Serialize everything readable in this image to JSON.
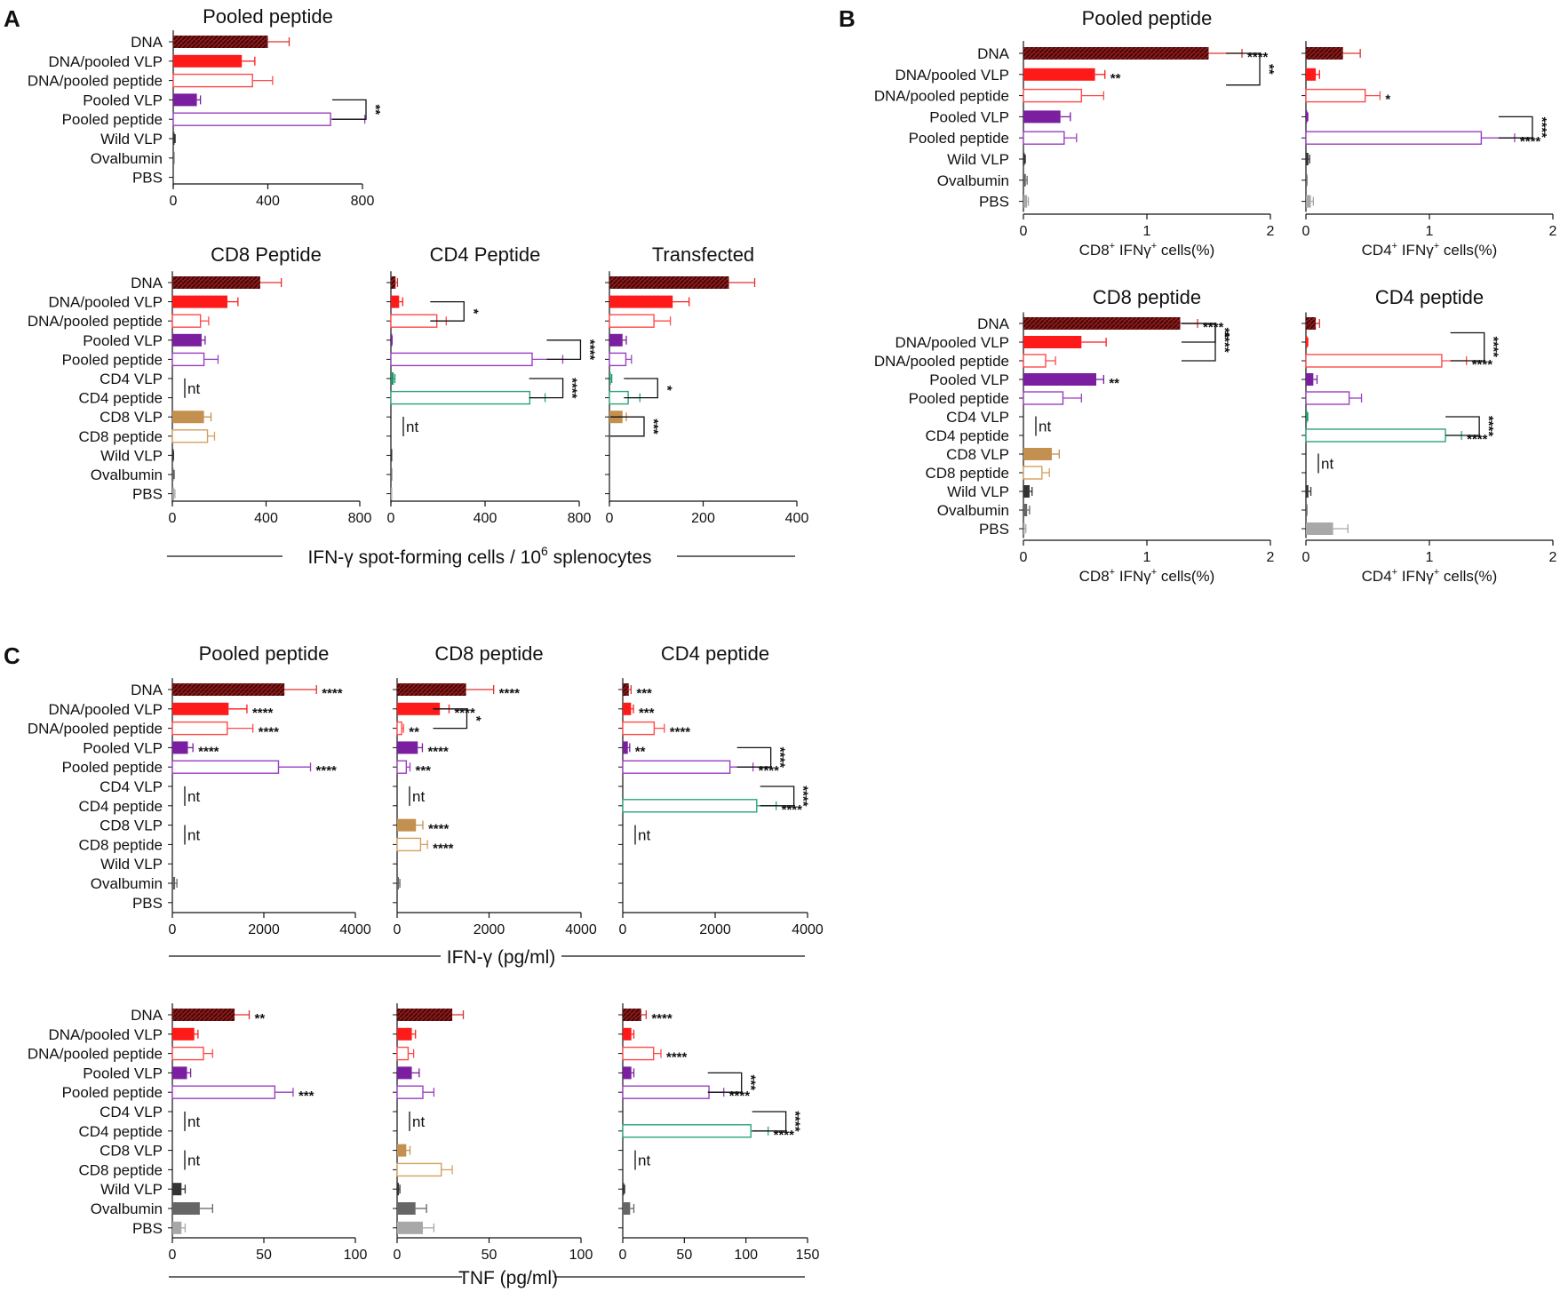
{
  "figure": {
    "panel_labels": [
      "A",
      "B",
      "C"
    ],
    "panelA": {
      "group_label": "IFN-γ spot-forming cells / 10",
      "group_label_sup": "6",
      "group_label_tail": " splenocytes"
    },
    "panelC": {
      "ifng_label": "IFN-γ (pg/ml)",
      "tnf_label": "TNF (pg/ml)"
    }
  },
  "chart_data": [
    {
      "id": "A1",
      "type": "bar",
      "title": "Pooled peptide",
      "categories": [
        "DNA",
        "DNA/pooled VLP",
        "DNA/pooled peptide",
        "Pooled VLP",
        "Pooled peptide",
        "Wild VLP",
        "Ovalbumin",
        "PBS"
      ],
      "values": [
        400,
        290,
        335,
        100,
        665,
        5,
        2,
        0
      ],
      "errors": [
        90,
        55,
        85,
        15,
        145,
        3,
        1,
        0
      ],
      "xlim": [
        0,
        800
      ],
      "ticks": [
        0,
        400,
        800
      ],
      "xlabel": "",
      "annotations": [
        {
          "type": "bracket",
          "from": "Pooled VLP",
          "to": "Pooled peptide",
          "label": "**"
        }
      ]
    },
    {
      "id": "A2",
      "type": "bar",
      "title": "CD8 Peptide",
      "categories": [
        "DNA",
        "DNA/pooled VLP",
        "DNA/pooled peptide",
        "Pooled VLP",
        "Pooled peptide",
        "CD4 VLP",
        "CD4 peptide",
        "CD8 VLP",
        "CD8 peptide",
        "Wild VLP",
        "Ovalbumin",
        "PBS"
      ],
      "values": [
        375,
        235,
        120,
        125,
        135,
        null,
        null,
        135,
        150,
        3,
        5,
        8
      ],
      "errors": [
        90,
        45,
        35,
        15,
        60,
        0,
        0,
        30,
        30,
        2,
        3,
        3
      ],
      "xlim": [
        0,
        800
      ],
      "ticks": [
        0,
        400,
        800
      ],
      "xlabel": "",
      "annotations": [
        {
          "type": "nt",
          "at": "CD4 VLP",
          "label": "nt"
        }
      ]
    },
    {
      "id": "A3",
      "type": "bar",
      "title": "CD4 Peptide",
      "categories": [
        "DNA",
        "DNA/pooled VLP",
        "DNA/pooled peptide",
        "Pooled VLP",
        "Pooled peptide",
        "CD4 VLP",
        "CD4 peptide",
        "CD8 VLP",
        "CD8 peptide",
        "Wild VLP",
        "Ovalbumin",
        "PBS"
      ],
      "values": [
        20,
        35,
        195,
        3,
        600,
        12,
        590,
        null,
        null,
        2,
        1,
        1
      ],
      "errors": [
        8,
        15,
        40,
        2,
        130,
        5,
        65,
        0,
        0,
        1,
        1,
        1
      ],
      "xlim": [
        0,
        800
      ],
      "ticks": [
        0,
        400,
        800
      ],
      "xlabel": "",
      "annotations": [
        {
          "type": "bracket",
          "from": "DNA/pooled VLP",
          "to": "DNA/pooled peptide",
          "label": "*"
        },
        {
          "type": "bracket",
          "from": "Pooled VLP",
          "to": "Pooled peptide",
          "label": "****"
        },
        {
          "type": "bracket",
          "from": "CD4 VLP",
          "to": "CD4 peptide",
          "label": "****"
        },
        {
          "type": "nt",
          "at": "CD8 VLP",
          "label": "nt"
        }
      ]
    },
    {
      "id": "A4",
      "type": "bar",
      "title": "Transfected",
      "categories": [
        "DNA",
        "DNA/pooled VLP",
        "DNA/pooled peptide",
        "Pooled VLP",
        "Pooled peptide",
        "CD4 VLP",
        "CD4 peptide",
        "CD8 VLP",
        "CD8 peptide",
        "Wild VLP",
        "Ovalbumin",
        "PBS"
      ],
      "values": [
        255,
        135,
        95,
        28,
        35,
        3,
        40,
        28,
        0,
        0,
        0,
        0
      ],
      "errors": [
        55,
        35,
        35,
        8,
        12,
        2,
        25,
        8,
        0,
        0,
        0,
        0
      ],
      "xlim": [
        0,
        400
      ],
      "ticks": [
        0,
        200,
        400
      ],
      "xlabel": "",
      "annotations": [
        {
          "type": "bracket",
          "from": "CD4 VLP",
          "to": "CD4 peptide",
          "label": "*"
        },
        {
          "type": "bracket",
          "from": "CD8 VLP",
          "to": "CD8 peptide",
          "label": "***"
        }
      ]
    },
    {
      "id": "B1",
      "type": "bar",
      "title": "Pooled peptide",
      "categories": [
        "DNA",
        "DNA/pooled VLP",
        "DNA/pooled peptide",
        "Pooled VLP",
        "Pooled peptide",
        "Wild VLP",
        "Ovalbumin",
        "PBS"
      ],
      "values": [
        1.5,
        0.58,
        0.47,
        0.3,
        0.33,
        0.01,
        0.02,
        0.03
      ],
      "errors": [
        0.27,
        0.08,
        0.18,
        0.08,
        0.1,
        0.005,
        0.01,
        0.01
      ],
      "xlim": [
        0,
        2
      ],
      "ticks": [
        0,
        1,
        2
      ],
      "xlabel": "CD8",
      "xlabel_sup1": "+",
      "xlabel_mid": " IFNγ",
      "xlabel_sup2": "+",
      "xlabel_tail": " cells(%)",
      "annotations": [
        {
          "type": "star",
          "at": "DNA",
          "label": "****"
        },
        {
          "type": "star",
          "at": "DNA/pooled VLP",
          "label": "**"
        },
        {
          "type": "bracket",
          "from": "DNA",
          "to": "DNA/pooled VLP+DNA/pooled peptide",
          "label": "**"
        }
      ]
    },
    {
      "id": "B2",
      "type": "bar",
      "title": "",
      "categories": [
        "DNA",
        "DNA/pooled VLP",
        "DNA/pooled peptide",
        "Pooled VLP",
        "Pooled peptide",
        "Wild VLP",
        "Ovalbumin",
        "PBS"
      ],
      "values": [
        0.3,
        0.08,
        0.48,
        0.01,
        1.42,
        0.02,
        0.005,
        0.04
      ],
      "errors": [
        0.14,
        0.03,
        0.12,
        0.005,
        0.27,
        0.01,
        0.003,
        0.02
      ],
      "xlim": [
        0,
        2
      ],
      "ticks": [
        0,
        1,
        2
      ],
      "xlabel": "CD4",
      "xlabel_sup1": "+",
      "xlabel_mid": " IFNγ",
      "xlabel_sup2": "+",
      "xlabel_tail": " cells(%)",
      "annotations": [
        {
          "type": "star",
          "at": "DNA/pooled peptide",
          "label": "*"
        },
        {
          "type": "star",
          "at": "Pooled peptide",
          "label": "****"
        },
        {
          "type": "bracket",
          "from": "Pooled VLP",
          "to": "Pooled peptide",
          "label": "****"
        }
      ]
    },
    {
      "id": "B3",
      "type": "bar",
      "title": "CD8 peptide",
      "categories": [
        "DNA",
        "DNA/pooled VLP",
        "DNA/pooled peptide",
        "Pooled VLP",
        "Pooled peptide",
        "CD4 VLP",
        "CD4 peptide",
        "CD8 VLP",
        "CD8 peptide",
        "Wild VLP",
        "Ovalbumin",
        "PBS"
      ],
      "values": [
        1.27,
        0.47,
        0.18,
        0.59,
        0.32,
        null,
        null,
        0.23,
        0.15,
        0.05,
        0.03,
        0.01
      ],
      "errors": [
        0.14,
        0.2,
        0.08,
        0.06,
        0.15,
        0,
        0,
        0.06,
        0.06,
        0.02,
        0.02,
        0.01
      ],
      "xlim": [
        0,
        2
      ],
      "ticks": [
        0,
        1,
        2
      ],
      "xlabel": "CD8",
      "xlabel_sup1": "+",
      "xlabel_mid": " IFNγ",
      "xlabel_sup2": "+",
      "xlabel_tail": " cells(%)",
      "annotations": [
        {
          "type": "star",
          "at": "DNA",
          "label": "****"
        },
        {
          "type": "star",
          "at": "Pooled VLP",
          "label": "**"
        },
        {
          "type": "bracket",
          "from": "DNA",
          "to": "DNA/pooled VLP",
          "label": "**"
        },
        {
          "type": "bracket",
          "from": "DNA",
          "to": "DNA/pooled peptide",
          "label": "****"
        },
        {
          "type": "nt",
          "at": "CD4 VLP",
          "label": "nt"
        }
      ]
    },
    {
      "id": "B4",
      "type": "bar",
      "title": "CD4 peptide",
      "categories": [
        "DNA",
        "DNA/pooled VLP",
        "DNA/pooled peptide",
        "Pooled VLP",
        "Pooled peptide",
        "CD4 VLP",
        "CD4 peptide",
        "CD8 VLP",
        "CD8 peptide",
        "Wild VLP",
        "Ovalbumin",
        "PBS"
      ],
      "values": [
        0.08,
        0.01,
        1.1,
        0.06,
        0.35,
        0.01,
        1.13,
        null,
        null,
        0.02,
        0.005,
        0.22
      ],
      "errors": [
        0.03,
        0.005,
        0.2,
        0.03,
        0.1,
        0.005,
        0.13,
        0,
        0,
        0.02,
        0.003,
        0.12
      ],
      "xlim": [
        0,
        2
      ],
      "ticks": [
        0,
        1,
        2
      ],
      "xlabel": "CD4",
      "xlabel_sup1": "+",
      "xlabel_mid": " IFNγ",
      "xlabel_sup2": "+",
      "xlabel_tail": " cells(%)",
      "annotations": [
        {
          "type": "star",
          "at": "DNA/pooled peptide",
          "label": "****"
        },
        {
          "type": "star",
          "at": "CD4 peptide",
          "label": "****"
        },
        {
          "type": "bracket",
          "from": "DNA+DNA/pooled VLP",
          "to": "DNA/pooled peptide",
          "label": "****"
        },
        {
          "type": "bracket",
          "from": "CD4 VLP",
          "to": "CD4 peptide",
          "label": "****"
        },
        {
          "type": "nt",
          "at": "CD8 VLP",
          "label": "nt"
        }
      ]
    },
    {
      "id": "C1",
      "type": "bar",
      "title": "Pooled peptide",
      "categories": [
        "DNA",
        "DNA/pooled VLP",
        "DNA/pooled peptide",
        "Pooled VLP",
        "Pooled peptide",
        "CD4 VLP",
        "CD4 peptide",
        "CD8 VLP",
        "CD8 peptide",
        "Wild VLP",
        "Ovalbumin",
        "PBS"
      ],
      "values": [
        2450,
        1230,
        1200,
        340,
        2320,
        null,
        null,
        null,
        null,
        0,
        60,
        0
      ],
      "errors": [
        700,
        400,
        560,
        110,
        700,
        0,
        0,
        0,
        0,
        0,
        40,
        0
      ],
      "xlim": [
        0,
        4000
      ],
      "ticks": [
        0,
        2000,
        4000
      ],
      "xlabel": "",
      "annotations": [
        {
          "type": "star",
          "at": "DNA",
          "label": "****"
        },
        {
          "type": "star",
          "at": "DNA/pooled VLP",
          "label": "****"
        },
        {
          "type": "star",
          "at": "DNA/pooled peptide",
          "label": "****"
        },
        {
          "type": "star",
          "at": "Pooled VLP",
          "label": "****"
        },
        {
          "type": "star",
          "at": "Pooled peptide",
          "label": "****"
        },
        {
          "type": "nt",
          "at": "CD4 VLP",
          "label": "nt"
        },
        {
          "type": "nt",
          "at": "CD8 VLP",
          "label": "nt"
        }
      ]
    },
    {
      "id": "C2",
      "type": "bar",
      "title": "CD8 peptide",
      "categories": [
        "DNA",
        "DNA/pooled VLP",
        "DNA/pooled peptide",
        "Pooled VLP",
        "Pooled peptide",
        "CD4 VLP",
        "CD4 peptide",
        "CD8 VLP",
        "CD8 peptide",
        "Wild VLP",
        "Ovalbumin",
        "PBS"
      ],
      "values": [
        1500,
        930,
        100,
        450,
        200,
        null,
        null,
        410,
        510,
        0,
        40,
        0
      ],
      "errors": [
        600,
        200,
        40,
        100,
        80,
        0,
        0,
        150,
        150,
        0,
        20,
        0
      ],
      "xlim": [
        0,
        4000
      ],
      "ticks": [
        0,
        2000,
        4000
      ],
      "xlabel": "",
      "annotations": [
        {
          "type": "star",
          "at": "DNA",
          "label": "****"
        },
        {
          "type": "star",
          "at": "DNA/pooled VLP",
          "label": "****"
        },
        {
          "type": "star",
          "at": "DNA/pooled peptide",
          "label": "**"
        },
        {
          "type": "star",
          "at": "Pooled VLP",
          "label": "****"
        },
        {
          "type": "star",
          "at": "Pooled peptide",
          "label": "***"
        },
        {
          "type": "star",
          "at": "CD8 VLP",
          "label": "****"
        },
        {
          "type": "star",
          "at": "CD8 peptide",
          "label": "****"
        },
        {
          "type": "bracket",
          "from": "DNA/pooled VLP",
          "to": "DNA/pooled peptide",
          "label": "*"
        },
        {
          "type": "nt",
          "at": "CD4 VLP",
          "label": "nt"
        }
      ]
    },
    {
      "id": "C3",
      "type": "bar",
      "title": "CD4 peptide",
      "categories": [
        "DNA",
        "DNA/pooled VLP",
        "DNA/pooled peptide",
        "Pooled VLP",
        "Pooled peptide",
        "CD4 VLP",
        "CD4 peptide",
        "CD8 VLP",
        "CD8 peptide",
        "Wild VLP",
        "Ovalbumin",
        "PBS"
      ],
      "values": [
        130,
        180,
        680,
        110,
        2320,
        0,
        2900,
        null,
        null,
        0,
        0,
        0
      ],
      "errors": [
        50,
        50,
        220,
        40,
        500,
        0,
        420,
        0,
        0,
        0,
        0,
        0
      ],
      "xlim": [
        0,
        4000
      ],
      "ticks": [
        0,
        2000,
        4000
      ],
      "xlabel": "",
      "annotations": [
        {
          "type": "star",
          "at": "DNA",
          "label": "***"
        },
        {
          "type": "star",
          "at": "DNA/pooled VLP",
          "label": "***"
        },
        {
          "type": "star",
          "at": "DNA/pooled peptide",
          "label": "****"
        },
        {
          "type": "star",
          "at": "Pooled VLP",
          "label": "**"
        },
        {
          "type": "star",
          "at": "Pooled peptide",
          "label": "****"
        },
        {
          "type": "star",
          "at": "CD4 peptide",
          "label": "****"
        },
        {
          "type": "bracket",
          "from": "Pooled VLP",
          "to": "Pooled peptide",
          "label": "****"
        },
        {
          "type": "bracket",
          "from": "CD4 VLP",
          "to": "CD4 peptide",
          "label": "****"
        },
        {
          "type": "nt",
          "at": "CD8 VLP",
          "label": "nt"
        }
      ]
    },
    {
      "id": "C4",
      "type": "bar",
      "title": "",
      "categories": [
        "DNA",
        "DNA/pooled VLP",
        "DNA/pooled peptide",
        "Pooled VLP",
        "Pooled peptide",
        "CD4 VLP",
        "CD4 peptide",
        "CD8 VLP",
        "CD8 peptide",
        "Wild VLP",
        "Ovalbumin",
        "PBS"
      ],
      "values": [
        34,
        12,
        17,
        8,
        56,
        null,
        null,
        null,
        null,
        5,
        15,
        5
      ],
      "errors": [
        8,
        2,
        5,
        2,
        10,
        0,
        0,
        0,
        0,
        2,
        7,
        2
      ],
      "xlim": [
        0,
        100
      ],
      "ticks": [
        0,
        50,
        100
      ],
      "xlabel": "",
      "annotations": [
        {
          "type": "star",
          "at": "DNA",
          "label": "**"
        },
        {
          "type": "star",
          "at": "Pooled peptide",
          "label": "***"
        },
        {
          "type": "nt",
          "at": "CD4 VLP",
          "label": "nt"
        },
        {
          "type": "nt",
          "at": "CD8 VLP",
          "label": "nt"
        }
      ]
    },
    {
      "id": "C5",
      "type": "bar",
      "title": "",
      "categories": [
        "DNA",
        "DNA/pooled VLP",
        "DNA/pooled peptide",
        "Pooled VLP",
        "Pooled peptide",
        "CD4 VLP",
        "CD4 peptide",
        "CD8 VLP",
        "CD8 peptide",
        "Wild VLP",
        "Ovalbumin",
        "PBS"
      ],
      "values": [
        30,
        8,
        6,
        8,
        14,
        null,
        null,
        5,
        24,
        1,
        10,
        14
      ],
      "errors": [
        6,
        2,
        3,
        4,
        6,
        0,
        0,
        2,
        6,
        0.5,
        6,
        6
      ],
      "xlim": [
        0,
        100
      ],
      "ticks": [
        0,
        50,
        100
      ],
      "xlabel": "",
      "annotations": [
        {
          "type": "nt",
          "at": "CD4 VLP",
          "label": "nt"
        }
      ]
    },
    {
      "id": "C6",
      "type": "bar",
      "title": "",
      "categories": [
        "DNA",
        "DNA/pooled VLP",
        "DNA/pooled peptide",
        "Pooled VLP",
        "Pooled peptide",
        "CD4 VLP",
        "CD4 peptide",
        "CD8 VLP",
        "CD8 peptide",
        "Wild VLP",
        "Ovalbumin",
        "PBS"
      ],
      "values": [
        15,
        7,
        25,
        7,
        70,
        0,
        104,
        null,
        null,
        1,
        6,
        0
      ],
      "errors": [
        4,
        2,
        6,
        2,
        12,
        0,
        14,
        0,
        0,
        0.5,
        3,
        0
      ],
      "xlim": [
        0,
        150
      ],
      "ticks": [
        0,
        50,
        100,
        150
      ],
      "xlabel": "",
      "annotations": [
        {
          "type": "star",
          "at": "DNA",
          "label": "****"
        },
        {
          "type": "star",
          "at": "DNA/pooled peptide",
          "label": "****"
        },
        {
          "type": "star",
          "at": "Pooled peptide",
          "label": "****"
        },
        {
          "type": "star",
          "at": "CD4 peptide",
          "label": "****"
        },
        {
          "type": "bracket",
          "from": "Pooled VLP",
          "to": "Pooled peptide",
          "label": "***"
        },
        {
          "type": "bracket",
          "from": "CD4 VLP",
          "to": "CD4 peptide",
          "label": "****"
        },
        {
          "type": "nt",
          "at": "CD8 VLP",
          "label": "nt"
        }
      ]
    }
  ],
  "colors": {
    "DNA": "#8b1a1a",
    "DNA/pooled VLP": "#ff1a1a",
    "DNA/pooled peptide": "#ff4a4a",
    "Pooled VLP": "#7a1fa0",
    "Pooled peptide": "#9a3fc0",
    "CD4 VLP": "#1e9b6b",
    "CD4 peptide": "#2aa57a",
    "CD8 VLP": "#c49050",
    "CD8 peptide": "#d4a060",
    "Wild VLP": "#333333",
    "Ovalbumin": "#666666",
    "PBS": "#a8a8a8"
  },
  "hollow": [
    "DNA/pooled peptide",
    "Pooled peptide",
    "CD4 peptide",
    "CD8 peptide"
  ]
}
